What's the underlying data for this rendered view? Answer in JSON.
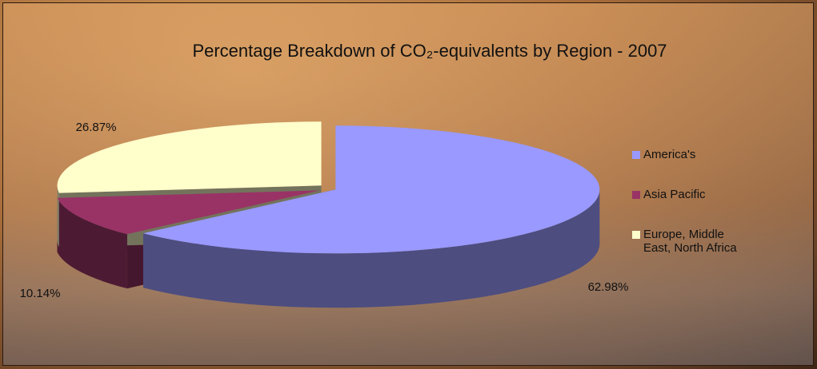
{
  "chart_data": {
    "type": "pie",
    "title": "Percentage Breakdown of CO₂-equivalents by Region - 2007",
    "categories": [
      "America's",
      "Asia Pacific",
      "Europe, Middle East, North Africa"
    ],
    "values": [
      62.98,
      10.14,
      26.87
    ],
    "value_labels": [
      "62.98%",
      "10.14%",
      "26.87%"
    ],
    "colors": [
      "#9999ff",
      "#993366",
      "#ffffcc"
    ],
    "legend": "right"
  }
}
